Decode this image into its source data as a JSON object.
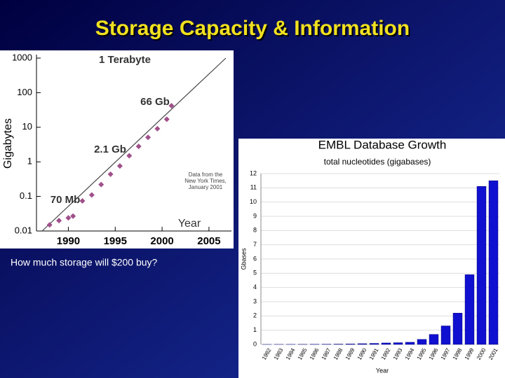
{
  "slide": {
    "title": "Storage Capacity & Information",
    "caption": "How much storage will $200 buy?"
  },
  "chart_data": [
    {
      "type": "scatter",
      "ylabel": "Gigabytes",
      "xlabel": "Year",
      "log_y": true,
      "color": "#a0508a",
      "line_color": "#444444",
      "x": [
        1988,
        1989,
        1990,
        1990.5,
        1991.5,
        1992.5,
        1993.5,
        1994.5,
        1995.5,
        1996.5,
        1997.5,
        1998.5,
        1999.5,
        2000.5,
        2001
      ],
      "values": [
        0.015,
        0.02,
        0.024,
        0.027,
        0.074,
        0.11,
        0.22,
        0.44,
        0.76,
        1.5,
        2.8,
        5.1,
        9.1,
        17,
        42
      ],
      "trend": {
        "x": [
          1987.2,
          2006.8
        ],
        "values": [
          0.01,
          1000
        ]
      },
      "xlim": [
        1986.6,
        2007.4
      ],
      "xticks": [
        1990,
        1995,
        2000,
        2005
      ],
      "ylim": [
        0.01,
        1000
      ],
      "yticks": [
        1000,
        100,
        10,
        1,
        0.1,
        0.01
      ],
      "annotations": [
        "1 Terabyte",
        "66 Gb",
        "2.1 Gb",
        "70 Mb"
      ],
      "note": [
        "Data from the",
        "New York Times,",
        "January 2001"
      ]
    },
    {
      "type": "bar",
      "title": "EMBL Database Growth",
      "subtitle": "total nucleotides (gigabases)",
      "ylabel": "Gbases",
      "xlabel": "Year",
      "color": "#1010d0",
      "categories": [
        "1982",
        "1983",
        "1984",
        "1985",
        "1986",
        "1987",
        "1988",
        "1989",
        "1990",
        "1991",
        "1992",
        "1993",
        "1994",
        "1995",
        "1996",
        "1997",
        "1998",
        "1999",
        "2000",
        "2001"
      ],
      "values": [
        0.001,
        0.002,
        0.003,
        0.005,
        0.008,
        0.013,
        0.02,
        0.03,
        0.05,
        0.07,
        0.1,
        0.12,
        0.15,
        0.35,
        0.7,
        1.3,
        2.2,
        4.9,
        11.1,
        11.5
      ],
      "ylim": [
        0,
        12
      ],
      "yticks": [
        0,
        1,
        2,
        3,
        4,
        5,
        6,
        7,
        8,
        9,
        10,
        11,
        12
      ],
      "grid": true
    }
  ]
}
